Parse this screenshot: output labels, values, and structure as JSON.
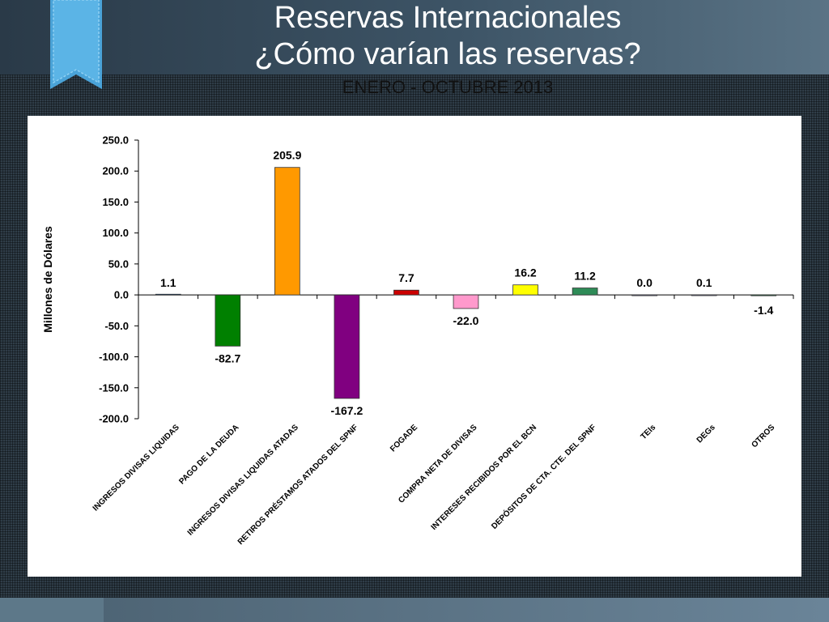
{
  "header": {
    "title_line1": "Reservas Internacionales",
    "title_line2": "¿Cómo varían las reservas?",
    "subtitle": "ENERO - OCTUBRE 2013"
  },
  "chart_data": {
    "type": "bar",
    "ylabel": "Millones de Dólares",
    "ylim": [
      -200,
      250
    ],
    "yticks": [
      "250.0",
      "200.0",
      "150.0",
      "100.0",
      "50.0",
      "0.0",
      "-50.0",
      "-100.0",
      "-150.0",
      "-200.0"
    ],
    "categories": [
      "INGRESOS DIVISAS LIQUIDAS",
      "PAGO DE LA DEUDA",
      "INGRESOS DIVISAS LIQUIDAS ATADAS",
      "RETIROS PRÉSTAMOS ATADOS DEL SPNF",
      "FOGADE",
      "COMPRA NETA DE DIVISAS",
      "INTERESES RECIBIDOS POR EL BCN",
      "DEPÓSITOS DE CTA. CTE. DEL SPNF",
      "TEIs",
      "DEGs",
      "OTROS"
    ],
    "values": [
      1.1,
      -82.7,
      205.9,
      -167.2,
      7.7,
      -22.0,
      16.2,
      11.2,
      0.0,
      0.1,
      -1.4
    ],
    "labels": [
      "1.1",
      "-82.7",
      "205.9",
      "-167.2",
      "7.7",
      "-22.0",
      "16.2",
      "11.2",
      "0.0",
      "0.1",
      "-1.4"
    ],
    "colors": [
      "#1f5fa8",
      "#008000",
      "#ff9900",
      "#800080",
      "#cc0000",
      "#ff99cc",
      "#ffff00",
      "#2e8b57",
      "#9999cc",
      "#9999cc",
      "#2e8b57"
    ],
    "grid": false,
    "legend": "none"
  }
}
